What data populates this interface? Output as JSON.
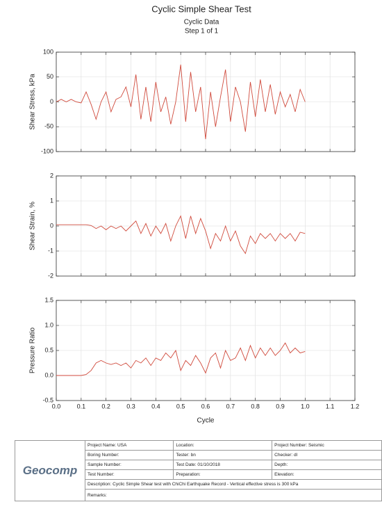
{
  "header": {
    "title": "Cyclic Simple Shear Test",
    "subtitle": "Cyclic Data",
    "step": "Step 1 of 1"
  },
  "chart_data": [
    {
      "type": "line",
      "ylabel": "Shear Stress, kPa",
      "color": "#d04a3c",
      "grid": true,
      "xlim": [
        0,
        1.2
      ],
      "xticks": [
        0,
        0.1,
        0.2,
        0.3,
        0.4,
        0.5,
        0.6,
        0.7,
        0.8,
        0.9,
        1,
        1.1,
        1.2
      ],
      "ylim": [
        -100,
        100
      ],
      "yticks": [
        100,
        50,
        0,
        -50,
        -100
      ],
      "x": [
        0,
        0.02,
        0.04,
        0.06,
        0.08,
        0.1,
        0.12,
        0.14,
        0.16,
        0.18,
        0.2,
        0.22,
        0.24,
        0.26,
        0.28,
        0.3,
        0.32,
        0.34,
        0.36,
        0.38,
        0.4,
        0.42,
        0.44,
        0.46,
        0.48,
        0.5,
        0.52,
        0.54,
        0.56,
        0.58,
        0.6,
        0.62,
        0.64,
        0.66,
        0.68,
        0.7,
        0.72,
        0.74,
        0.76,
        0.78,
        0.8,
        0.82,
        0.84,
        0.86,
        0.88,
        0.9,
        0.92,
        0.94,
        0.96,
        0.98,
        1
      ],
      "values": [
        0,
        5,
        0,
        5,
        0,
        -2,
        20,
        -5,
        -35,
        0,
        20,
        -20,
        5,
        10,
        30,
        -10,
        55,
        -35,
        30,
        -40,
        40,
        -20,
        10,
        -45,
        0,
        75,
        -40,
        60,
        -20,
        30,
        -75,
        20,
        -50,
        10,
        65,
        -40,
        30,
        0,
        -60,
        40,
        -30,
        45,
        -20,
        35,
        -25,
        20,
        -10,
        15,
        -20,
        25,
        0
      ]
    },
    {
      "type": "line",
      "ylabel": "Shear Strain, %",
      "color": "#d04a3c",
      "grid": true,
      "xlim": [
        0,
        1.2
      ],
      "xticks": [
        0,
        0.1,
        0.2,
        0.3,
        0.4,
        0.5,
        0.6,
        0.7,
        0.8,
        0.9,
        1,
        1.1,
        1.2
      ],
      "ylim": [
        -2,
        2
      ],
      "yticks": [
        2,
        1,
        0,
        -1,
        -2
      ],
      "x": [
        0,
        0.02,
        0.04,
        0.06,
        0.08,
        0.1,
        0.12,
        0.14,
        0.16,
        0.18,
        0.2,
        0.22,
        0.24,
        0.26,
        0.28,
        0.3,
        0.32,
        0.34,
        0.36,
        0.38,
        0.4,
        0.42,
        0.44,
        0.46,
        0.48,
        0.5,
        0.52,
        0.54,
        0.56,
        0.58,
        0.6,
        0.62,
        0.64,
        0.66,
        0.68,
        0.7,
        0.72,
        0.74,
        0.76,
        0.78,
        0.8,
        0.82,
        0.84,
        0.86,
        0.88,
        0.9,
        0.92,
        0.94,
        0.96,
        0.98,
        1
      ],
      "values": [
        0.05,
        0.05,
        0.05,
        0.05,
        0.05,
        0.05,
        0.05,
        0.02,
        -0.1,
        0,
        -0.15,
        0,
        -0.1,
        0,
        -0.2,
        0,
        0.2,
        -0.3,
        0.1,
        -0.4,
        0,
        -0.3,
        0.1,
        -0.6,
        0,
        0.4,
        -0.5,
        0.4,
        -0.3,
        0.3,
        -0.2,
        -0.9,
        -0.3,
        -0.6,
        0,
        -0.6,
        -0.2,
        -0.8,
        -1.1,
        -0.4,
        -0.7,
        -0.3,
        -0.5,
        -0.3,
        -0.6,
        -0.3,
        -0.5,
        -0.3,
        -0.6,
        -0.25,
        -0.3
      ]
    },
    {
      "type": "line",
      "ylabel": "Pressure Ratio",
      "xlabel": "Cycle",
      "color": "#d04a3c",
      "grid": true,
      "xlim": [
        0,
        1.2
      ],
      "xticks": [
        {
          "value": 0,
          "label": "0.0"
        },
        0.1,
        0.2,
        0.3,
        0.4,
        0.5,
        0.6,
        0.7,
        0.8,
        0.9,
        {
          "value": 1,
          "label": "1.0"
        },
        1.1,
        1.2
      ],
      "ylim": [
        -0.5,
        1.5
      ],
      "yticks": [
        1.5,
        {
          "value": 1,
          "label": "1.0"
        },
        0.5,
        {
          "value": 0,
          "label": "0.0"
        },
        -0.5
      ],
      "x": [
        0,
        0.02,
        0.04,
        0.06,
        0.08,
        0.1,
        0.12,
        0.14,
        0.16,
        0.18,
        0.2,
        0.22,
        0.24,
        0.26,
        0.28,
        0.3,
        0.32,
        0.34,
        0.36,
        0.38,
        0.4,
        0.42,
        0.44,
        0.46,
        0.48,
        0.5,
        0.52,
        0.54,
        0.56,
        0.58,
        0.6,
        0.62,
        0.64,
        0.66,
        0.68,
        0.7,
        0.72,
        0.74,
        0.76,
        0.78,
        0.8,
        0.82,
        0.84,
        0.86,
        0.88,
        0.9,
        0.92,
        0.94,
        0.96,
        0.98,
        1
      ],
      "values": [
        0,
        0,
        0,
        0,
        0,
        0,
        0.02,
        0.1,
        0.25,
        0.3,
        0.25,
        0.22,
        0.25,
        0.2,
        0.25,
        0.15,
        0.3,
        0.25,
        0.35,
        0.2,
        0.35,
        0.3,
        0.45,
        0.35,
        0.5,
        0.1,
        0.3,
        0.2,
        0.4,
        0.25,
        0.05,
        0.35,
        0.45,
        0.15,
        0.5,
        0.3,
        0.35,
        0.55,
        0.3,
        0.6,
        0.35,
        0.55,
        0.4,
        0.55,
        0.4,
        0.5,
        0.65,
        0.45,
        0.55,
        0.45,
        0.48
      ]
    }
  ],
  "footer": {
    "logo": "Geocomp",
    "rows": [
      [
        "Project Name: USA",
        "Location:",
        "Project Number: Seismic"
      ],
      [
        "Boring Number:",
        "Tester: bn",
        "Checker: dl"
      ],
      [
        "Sample Number:",
        "Test Date: 01/10/2018",
        "Depth:"
      ],
      [
        "Test Number:",
        "Preparation:",
        "Elevation:"
      ]
    ],
    "description": "Description: Cyclic Simple Shear test with ChiChi Earthquake Record - Vertical effective stress is 300 kPa",
    "remarks": "Remarks:"
  }
}
